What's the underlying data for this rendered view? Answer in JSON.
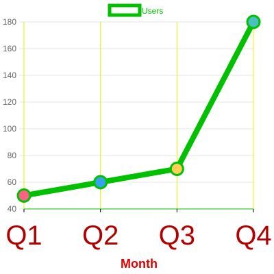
{
  "chart_data": {
    "type": "line",
    "categories": [
      "Q1",
      "Q2",
      "Q3",
      "Q4"
    ],
    "series": [
      {
        "name": "Users",
        "values": [
          50,
          60,
          70,
          180
        ],
        "color": "#00c000",
        "point_colors": [
          "#ff6384",
          "#36a2eb",
          "#ffce56",
          "#4bc0c0"
        ]
      }
    ],
    "title": "",
    "xlabel": "Month",
    "ylabel": "",
    "ylim": [
      40,
      180
    ],
    "y_ticks": [
      40,
      60,
      80,
      100,
      120,
      140,
      160,
      180
    ],
    "grid": true,
    "legend_position": "top",
    "colors": {
      "x_grid": "#eeee00",
      "y_grid": "#e6e6e6",
      "x_axis": "#00c000",
      "category_labels": "#b00000",
      "axis_title": "#e00000",
      "legend_text": "#00c000",
      "tick_labels": "#666666"
    }
  }
}
